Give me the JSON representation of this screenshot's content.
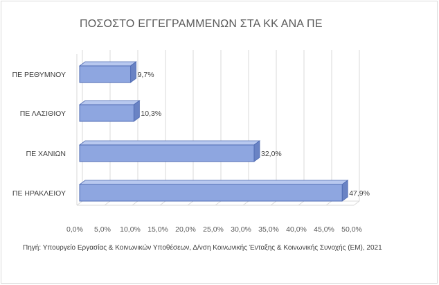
{
  "chart_data": {
    "type": "bar",
    "orientation": "horizontal",
    "title": "ΠΟΣΟΣΤΟ ΕΓΓΕΓΡΑΜΜΕΝΩΝ ΣΤΑ ΚΚ ΑΝΑ ΠΕ",
    "categories": [
      "ΠΕ ΡΕΘΥΜΝΟΥ",
      "ΠΕ ΛΑΣΙΘΙΟΥ",
      "ΠΕ ΧΑΝΙΩΝ",
      "ΠΕ ΗΡΑΚΛΕΙΟΥ"
    ],
    "values": [
      9.7,
      10.3,
      32.0,
      47.9
    ],
    "data_labels": [
      "9,7%",
      "10,3%",
      "32,0%",
      "47,9%"
    ],
    "xlim": [
      0,
      50
    ],
    "x_ticks": [
      "0,0%",
      "5,0%",
      "10,0%",
      "15,0%",
      "20,0%",
      "25,0%",
      "30,0%",
      "35,0%",
      "40,0%",
      "45,0%",
      "50,0%"
    ],
    "grid": "vertical",
    "legend": "none",
    "bar_color": "#8ea6e0",
    "bar_edge_color": "#4f6bb3",
    "bar_top_color": "#b8c8ef",
    "bar_side_color": "#6a83c4",
    "style": "3d"
  },
  "source_note": "Πηγή: Υπουργείο Εργασίας & Κοινωνικών Υποθέσεων, Δ/νση Κοινωνικής Ένταξης & Κοινωνικής Συνοχής (ΕΜ), 2021"
}
